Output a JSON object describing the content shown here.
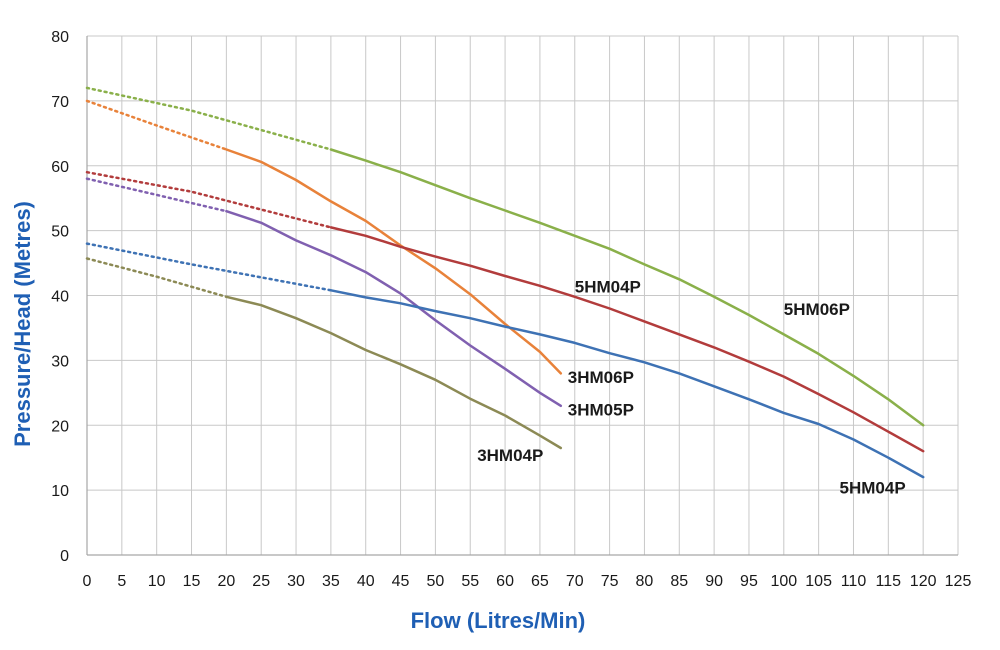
{
  "chart_data": {
    "type": "line",
    "title": "",
    "xlabel": "Flow (Litres/Min)",
    "ylabel": "Pressure/Head (Metres)",
    "xlim": [
      0,
      125
    ],
    "ylim": [
      0,
      80
    ],
    "xticks": [
      0,
      5,
      10,
      15,
      20,
      25,
      30,
      35,
      40,
      45,
      50,
      55,
      60,
      65,
      70,
      75,
      80,
      85,
      90,
      95,
      100,
      105,
      110,
      115,
      120,
      125
    ],
    "yticks": [
      0,
      10,
      20,
      30,
      40,
      50,
      60,
      70,
      80
    ],
    "grid": true,
    "legend": "none (labels placed next to curves)",
    "series": [
      {
        "name": "3HM04P",
        "color": "#8c8a55",
        "dotted": [
          [
            0,
            45.7
          ],
          [
            10,
            42.9
          ],
          [
            20,
            39.8
          ]
        ],
        "solid": [
          [
            20,
            39.8
          ],
          [
            25,
            38.5
          ],
          [
            30,
            36.5
          ],
          [
            35,
            34.2
          ],
          [
            40,
            31.6
          ],
          [
            45,
            29.4
          ],
          [
            50,
            27.0
          ],
          [
            55,
            24.1
          ],
          [
            60,
            21.5
          ],
          [
            65,
            18.4
          ],
          [
            68,
            16.5
          ]
        ]
      },
      {
        "name": "3HM05P",
        "color": "#8060b0",
        "dotted": [
          [
            0,
            58.0
          ],
          [
            10,
            55.5
          ],
          [
            20,
            53.0
          ]
        ],
        "solid": [
          [
            20,
            53.0
          ],
          [
            25,
            51.2
          ],
          [
            30,
            48.5
          ],
          [
            35,
            46.2
          ],
          [
            40,
            43.6
          ],
          [
            45,
            40.3
          ],
          [
            50,
            36.2
          ],
          [
            55,
            32.3
          ],
          [
            60,
            28.7
          ],
          [
            65,
            25.0
          ],
          [
            68,
            23.0
          ]
        ]
      },
      {
        "name": "3HM06P",
        "color": "#e8823a",
        "dotted": [
          [
            0,
            70.0
          ],
          [
            10,
            66.2
          ],
          [
            20,
            62.5
          ]
        ],
        "solid": [
          [
            20,
            62.5
          ],
          [
            25,
            60.6
          ],
          [
            30,
            57.8
          ],
          [
            35,
            54.5
          ],
          [
            40,
            51.5
          ],
          [
            45,
            47.7
          ],
          [
            50,
            44.2
          ],
          [
            55,
            40.2
          ],
          [
            60,
            35.6
          ],
          [
            65,
            31.3
          ],
          [
            68,
            28.0
          ]
        ]
      },
      {
        "name": "5HM04P",
        "color": "#3e72b4",
        "dotted": [
          [
            0,
            48.0
          ],
          [
            15,
            44.8
          ],
          [
            35,
            40.8
          ]
        ],
        "solid": [
          [
            35,
            40.8
          ],
          [
            40,
            39.7
          ],
          [
            45,
            38.8
          ],
          [
            50,
            37.6
          ],
          [
            55,
            36.5
          ],
          [
            60,
            35.2
          ],
          [
            65,
            34.0
          ],
          [
            70,
            32.7
          ],
          [
            75,
            31.1
          ],
          [
            80,
            29.7
          ],
          [
            85,
            28.0
          ],
          [
            90,
            26.0
          ],
          [
            95,
            24.0
          ],
          [
            100,
            21.9
          ],
          [
            105,
            20.2
          ],
          [
            110,
            17.8
          ],
          [
            115,
            15.0
          ],
          [
            120,
            12.0
          ]
        ]
      },
      {
        "name": "5HM04P",
        "color": "#b23c3c",
        "dotted": [
          [
            0,
            59.0
          ],
          [
            15,
            56.0
          ],
          [
            35,
            50.5
          ]
        ],
        "solid": [
          [
            35,
            50.5
          ],
          [
            40,
            49.2
          ],
          [
            45,
            47.5
          ],
          [
            50,
            46.0
          ],
          [
            55,
            44.6
          ],
          [
            60,
            43.0
          ],
          [
            65,
            41.5
          ],
          [
            70,
            39.8
          ],
          [
            75,
            38.0
          ],
          [
            80,
            36.0
          ],
          [
            85,
            34.0
          ],
          [
            90,
            32.0
          ],
          [
            95,
            29.8
          ],
          [
            100,
            27.5
          ],
          [
            105,
            24.8
          ],
          [
            110,
            22.0
          ],
          [
            115,
            19.0
          ],
          [
            120,
            16.0
          ]
        ]
      },
      {
        "name": "5HM06P",
        "color": "#8ab04a",
        "dotted": [
          [
            0,
            72.0
          ],
          [
            15,
            68.5
          ],
          [
            35,
            62.5
          ]
        ],
        "solid": [
          [
            35,
            62.5
          ],
          [
            40,
            60.8
          ],
          [
            45,
            59.0
          ],
          [
            50,
            57.0
          ],
          [
            55,
            55.0
          ],
          [
            60,
            53.1
          ],
          [
            65,
            51.2
          ],
          [
            70,
            49.2
          ],
          [
            75,
            47.2
          ],
          [
            80,
            44.8
          ],
          [
            85,
            42.5
          ],
          [
            90,
            39.8
          ],
          [
            95,
            37.0
          ],
          [
            100,
            34.0
          ],
          [
            105,
            31.0
          ],
          [
            110,
            27.6
          ],
          [
            115,
            24.0
          ],
          [
            120,
            20.0
          ]
        ]
      }
    ],
    "annotations": [
      {
        "text": "3HM04P",
        "x": 56,
        "y": 14.5
      },
      {
        "text": "3HM05P",
        "x": 69,
        "y": 21.5
      },
      {
        "text": "3HM06P",
        "x": 69,
        "y": 26.5
      },
      {
        "text": "5HM04P",
        "x": 70,
        "y": 40.5
      },
      {
        "text": "5HM06P",
        "x": 100,
        "y": 37.0
      },
      {
        "text": "5HM04P",
        "x": 108,
        "y": 9.5
      }
    ]
  }
}
